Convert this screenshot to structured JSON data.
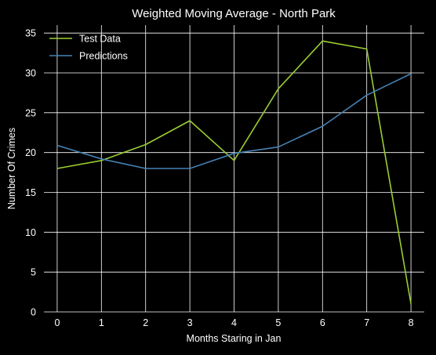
{
  "colors": {
    "background": "#000000",
    "grid": "#ffffff",
    "text": "#ffffff"
  },
  "chart_data": {
    "type": "line",
    "title": "Weighted Moving Average - North Park",
    "xlabel": "Months Staring in Jan",
    "ylabel": "Number Of Crimes",
    "x": [
      0,
      1,
      2,
      3,
      4,
      5,
      6,
      7,
      8
    ],
    "xlim": [
      -0.3,
      8.3
    ],
    "ylim": [
      0,
      36
    ],
    "xticks": [
      0,
      1,
      2,
      3,
      4,
      5,
      6,
      7,
      8
    ],
    "yticks": [
      0,
      5,
      10,
      15,
      20,
      25,
      30,
      35
    ],
    "grid": true,
    "legend_position": "top-left",
    "series": [
      {
        "name": "Test Data",
        "color": "#9acd32",
        "values": [
          18,
          19,
          21,
          24,
          19,
          28,
          34,
          33,
          1
        ]
      },
      {
        "name": "Predictions",
        "color": "#4682b4",
        "values": [
          20.9,
          19.2,
          18,
          18,
          19.9,
          20.7,
          23.3,
          27.2,
          29.9
        ]
      }
    ]
  }
}
